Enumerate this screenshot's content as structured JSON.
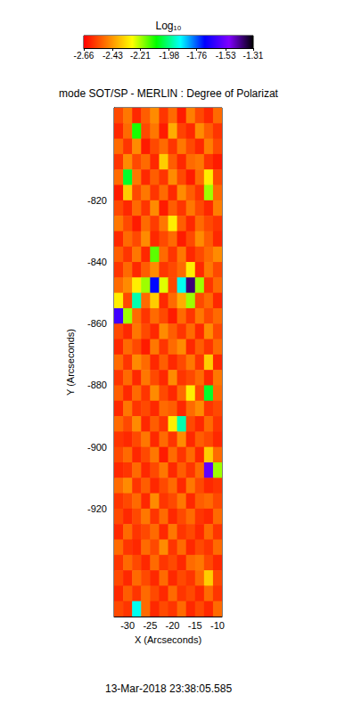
{
  "chart_data": {
    "type": "heatmap",
    "title": "mode SOT/SP - MERLIN : Degree of Polarizat",
    "xlabel": "X (Arcseconds)",
    "ylabel": "Y (Arcseconds)",
    "annotations": [
      "13-Mar-2018 23:38:05.585"
    ],
    "xlim": [
      -33,
      -9
    ],
    "ylim": [
      -955,
      -790
    ],
    "xticks": [
      -30,
      -25,
      -20,
      -15,
      -10
    ],
    "yticks": [
      -920,
      -900,
      -880,
      -860,
      -840,
      -820
    ],
    "x": [
      -32,
      -30,
      -28,
      -26,
      -24,
      -22,
      -20,
      -18,
      -16,
      -14,
      -12,
      -10
    ],
    "y": [
      -792.5,
      -797.5,
      -802.5,
      -807.5,
      -812.5,
      -817.5,
      -822.5,
      -827.5,
      -832.5,
      -837.5,
      -842.5,
      -847.5,
      -852.5,
      -857.5,
      -862.5,
      -867.5,
      -872.5,
      -877.5,
      -882.5,
      -887.5,
      -892.5,
      -897.5,
      -902.5,
      -907.5,
      -912.5,
      -917.5,
      -922.5,
      -927.5,
      -932.5,
      -937.5,
      -942.5,
      -947.5,
      -952.5
    ],
    "cells": [
      [
        -2.55,
        -2.48,
        -2.6,
        -2.52,
        -2.45,
        -2.58,
        -2.5,
        -2.62,
        -2.47,
        -2.55,
        -2.6,
        -2.5
      ],
      [
        -2.6,
        -2.5,
        -2.1,
        -2.55,
        -2.48,
        -2.62,
        -2.4,
        -2.56,
        -2.6,
        -2.45,
        -2.52,
        -2.58
      ],
      [
        -2.5,
        -2.58,
        -2.45,
        -2.62,
        -2.55,
        -2.5,
        -2.58,
        -2.48,
        -2.55,
        -2.6,
        -2.47,
        -2.55
      ],
      [
        -2.58,
        -2.45,
        -2.55,
        -2.5,
        -2.6,
        -2.35,
        -2.52,
        -2.6,
        -2.5,
        -2.48,
        -2.58,
        -2.62
      ],
      [
        -2.5,
        -2.05,
        -2.48,
        -2.6,
        -2.52,
        -2.58,
        -2.45,
        -2.55,
        -2.62,
        -2.5,
        -2.3,
        -2.55
      ],
      [
        -2.62,
        -2.35,
        -2.55,
        -2.48,
        -2.58,
        -2.5,
        -2.6,
        -2.45,
        -2.52,
        -2.58,
        -2.2,
        -2.5
      ],
      [
        -2.55,
        -2.6,
        -2.5,
        -2.58,
        -2.45,
        -2.62,
        -2.52,
        -2.58,
        -2.48,
        -2.55,
        -2.6,
        -2.47
      ],
      [
        -2.48,
        -2.55,
        -2.62,
        -2.5,
        -2.57,
        -2.48,
        -2.3,
        -2.52,
        -2.6,
        -2.5,
        -2.55,
        -2.58
      ],
      [
        -2.6,
        -2.5,
        -2.55,
        -2.45,
        -2.6,
        -2.55,
        -2.5,
        -2.62,
        -2.55,
        -2.45,
        -2.52,
        -2.6
      ],
      [
        -2.52,
        -2.58,
        -2.48,
        -2.6,
        -2.15,
        -2.5,
        -2.58,
        -2.48,
        -2.6,
        -2.55,
        -2.5,
        -2.45
      ],
      [
        -2.58,
        -2.5,
        -2.6,
        -2.52,
        -2.45,
        -2.58,
        -2.55,
        -2.5,
        -2.3,
        -2.6,
        -2.48,
        -2.55
      ],
      [
        -2.5,
        -2.45,
        -2.3,
        -2.2,
        -1.7,
        -2.25,
        -2.55,
        -1.9,
        -1.4,
        -2.2,
        -2.58,
        -2.5
      ],
      [
        -2.3,
        -2.55,
        -1.95,
        -2.5,
        -2.35,
        -2.6,
        -2.5,
        -2.4,
        -2.2,
        -2.55,
        -2.5,
        -2.6
      ],
      [
        -1.6,
        -2.2,
        -2.5,
        -2.58,
        -2.5,
        -2.55,
        -2.62,
        -2.5,
        -2.58,
        -2.48,
        -2.55,
        -2.5
      ],
      [
        -2.55,
        -2.6,
        -2.48,
        -2.55,
        -2.6,
        -2.45,
        -2.52,
        -2.58,
        -2.5,
        -2.6,
        -2.45,
        -2.55
      ],
      [
        -2.6,
        -2.5,
        -2.55,
        -2.62,
        -2.48,
        -2.58,
        -2.5,
        -2.45,
        -2.6,
        -2.52,
        -2.58,
        -2.5
      ],
      [
        -2.5,
        -2.58,
        -2.45,
        -2.5,
        -2.6,
        -2.52,
        -2.6,
        -2.55,
        -2.48,
        -2.58,
        -2.35,
        -2.6
      ],
      [
        -2.58,
        -2.5,
        -2.6,
        -2.48,
        -2.55,
        -2.6,
        -2.45,
        -2.58,
        -2.55,
        -2.5,
        -2.6,
        -2.48
      ],
      [
        -2.52,
        -2.6,
        -2.5,
        -2.58,
        -2.45,
        -2.55,
        -2.6,
        -2.5,
        -2.3,
        -2.55,
        -2.05,
        -2.5
      ],
      [
        -2.6,
        -2.48,
        -2.58,
        -2.55,
        -2.6,
        -2.5,
        -2.52,
        -2.6,
        -2.5,
        -2.45,
        -2.58,
        -2.55
      ],
      [
        -2.5,
        -2.55,
        -2.45,
        -2.6,
        -2.52,
        -2.58,
        -2.3,
        -1.95,
        -2.55,
        -2.6,
        -2.5,
        -2.58
      ],
      [
        -2.58,
        -2.6,
        -2.55,
        -2.48,
        -2.6,
        -2.5,
        -2.58,
        -2.45,
        -2.6,
        -2.52,
        -2.55,
        -2.6
      ],
      [
        -2.55,
        -2.5,
        -2.6,
        -2.55,
        -2.48,
        -2.62,
        -2.5,
        -2.58,
        -2.5,
        -2.6,
        -2.35,
        -2.5
      ],
      [
        -2.6,
        -2.58,
        -2.5,
        -2.6,
        -2.55,
        -2.48,
        -2.6,
        -2.52,
        -2.58,
        -2.5,
        -1.55,
        -2.2
      ],
      [
        -2.5,
        -2.45,
        -2.58,
        -2.52,
        -2.6,
        -2.55,
        -2.5,
        -2.6,
        -2.48,
        -2.55,
        -2.6,
        -2.58
      ],
      [
        -2.58,
        -2.55,
        -2.5,
        -2.6,
        -2.45,
        -2.58,
        -2.55,
        -2.48,
        -2.6,
        -2.52,
        -2.5,
        -2.55
      ],
      [
        -2.55,
        -2.6,
        -2.55,
        -2.48,
        -2.58,
        -2.5,
        -2.6,
        -2.55,
        -2.5,
        -2.58,
        -2.6,
        -2.5
      ],
      [
        -2.6,
        -2.5,
        -2.58,
        -2.55,
        -2.5,
        -2.6,
        -2.48,
        -2.58,
        -2.55,
        -2.6,
        -2.5,
        -2.58
      ],
      [
        -2.5,
        -2.58,
        -2.6,
        -2.5,
        -2.55,
        -2.45,
        -2.58,
        -2.5,
        -2.6,
        -2.55,
        -2.58,
        -2.5
      ],
      [
        -2.58,
        -2.5,
        -2.55,
        -2.6,
        -2.5,
        -2.58,
        -2.55,
        -2.6,
        -2.5,
        -2.48,
        -2.55,
        -2.6
      ],
      [
        -2.55,
        -2.6,
        -2.5,
        -2.55,
        -2.6,
        -2.5,
        -2.6,
        -2.55,
        -2.58,
        -2.5,
        -2.35,
        -2.55
      ],
      [
        -2.6,
        -2.52,
        -2.58,
        -2.5,
        -2.55,
        -2.6,
        -2.5,
        -2.58,
        -2.55,
        -2.6,
        -2.5,
        -2.58
      ],
      [
        -2.55,
        -2.58,
        -1.9,
        -2.5,
        -2.6,
        -2.55,
        -2.58,
        -2.5,
        -2.6,
        -2.55,
        -2.6,
        -2.5
      ]
    ],
    "colorbar": {
      "title": "Log₁₀",
      "range": [
        -2.66,
        -1.31
      ],
      "ticks": [
        -2.66,
        -2.43,
        -2.21,
        -1.98,
        -1.76,
        -1.53,
        -1.31
      ]
    }
  }
}
